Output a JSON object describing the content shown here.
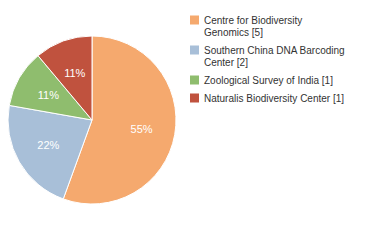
{
  "chart_data": {
    "type": "pie",
    "categories": [
      "Centre for Biodiversity\nGenomics [5]",
      "Southern China DNA Barcoding\nCenter [2]",
      "Zoological Survey of India [1]",
      "Naturalis Biodiversity Center [1]"
    ],
    "values": [
      55,
      22,
      11,
      11
    ],
    "value_labels": [
      "55%",
      "22%",
      "11%",
      "11%"
    ],
    "colors": [
      "#f5a96e",
      "#a8bfd8",
      "#8fbd6e",
      "#c0523e"
    ],
    "data_labels": true,
    "legend": "upper right"
  }
}
